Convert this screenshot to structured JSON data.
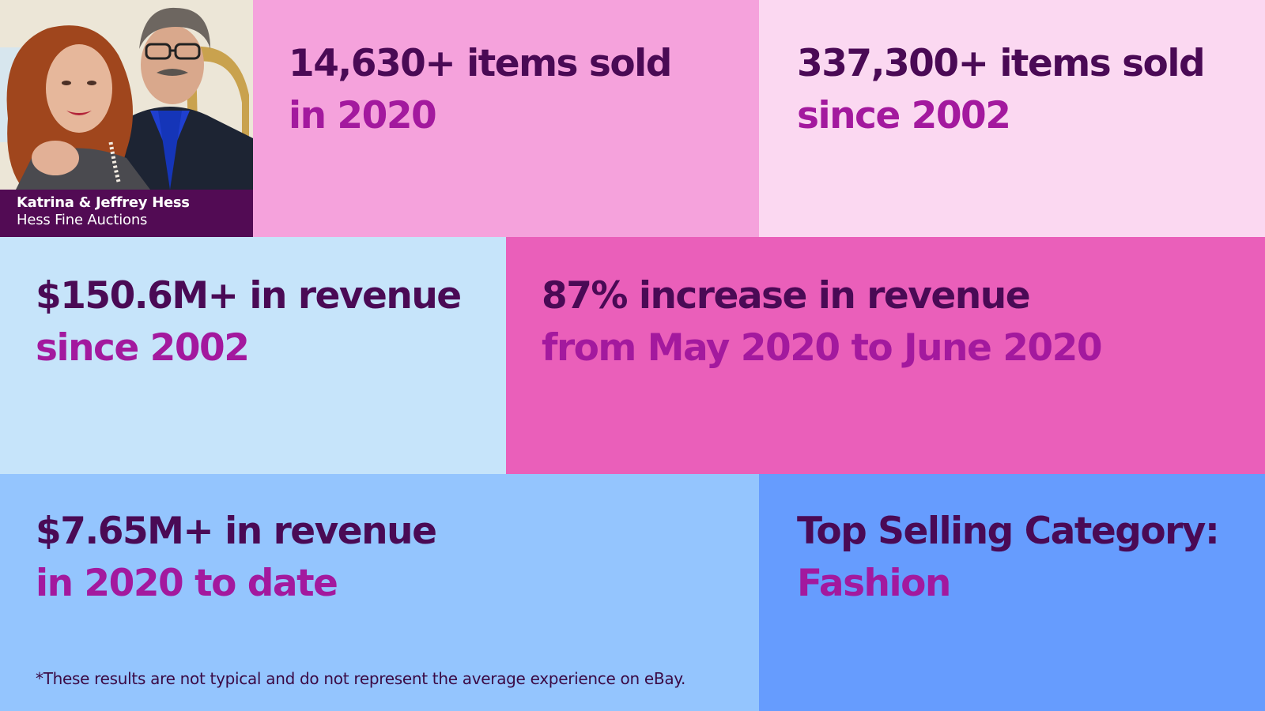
{
  "profile": {
    "names": "Katrina & Jeffrey Hess",
    "business": "Hess Fine Auctions"
  },
  "stats": {
    "items_2020": {
      "headline": "14,630+ items sold",
      "subline": "in 2020"
    },
    "items_2002": {
      "headline": "337,300+ items sold",
      "subline": "since 2002"
    },
    "revenue_2002": {
      "headline": "$150.6M+ in revenue",
      "subline": "since 2002"
    },
    "increase": {
      "headline": "87% increase in revenue",
      "subline": "from May 2020 to June 2020"
    },
    "revenue_2020": {
      "headline": "$7.65M+ in revenue",
      "subline": "in 2020 to date"
    },
    "category": {
      "headline": "Top Selling Category:",
      "subline": "Fashion"
    }
  },
  "disclaimer": "*These results are not typical and do not represent the average experience on eBay.",
  "colors": {
    "headline": "#4a0a55",
    "subline": "#a3199e",
    "caption_bg": "#520b54",
    "pink": "#f5a2dc",
    "light_pink": "#fbd8f1",
    "light_blue": "#c6e4fa",
    "magenta": "#ea5fba",
    "sky_blue": "#94c5fe",
    "blue": "#669cfe"
  }
}
